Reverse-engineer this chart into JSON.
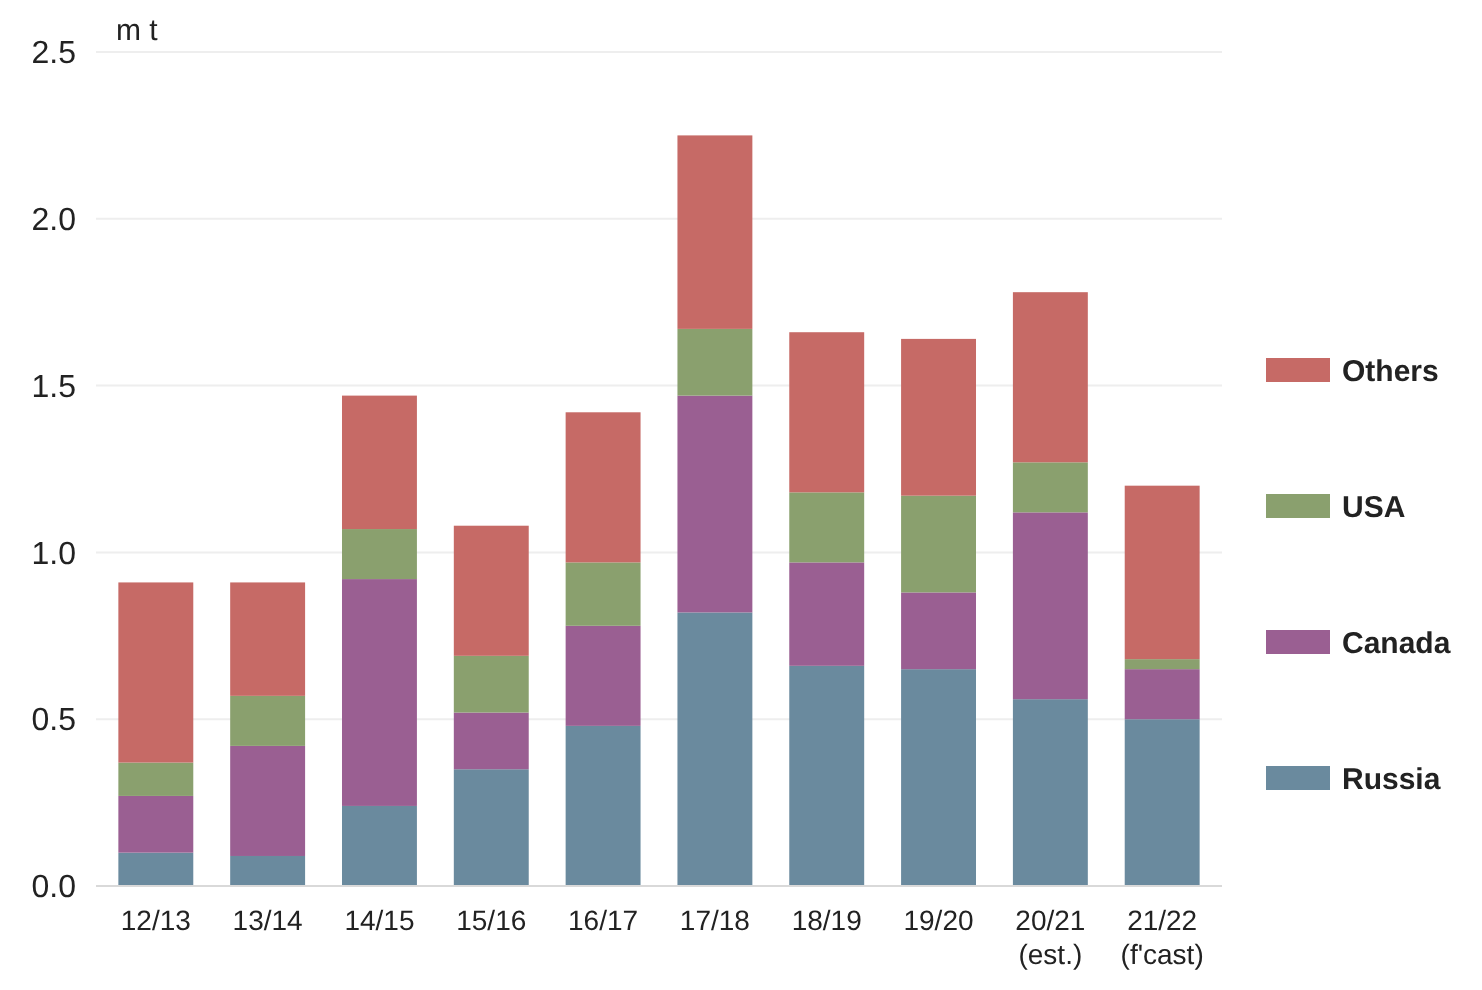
{
  "chart_data": {
    "type": "bar",
    "stacked": true,
    "ylabel": "m t",
    "categories": [
      "12/13",
      "13/14",
      "14/15",
      "15/16",
      "16/17",
      "17/18",
      "18/19",
      "19/20",
      "20/21\n(est.)",
      "21/22\n(f'cast)"
    ],
    "series": [
      {
        "name": "Russia",
        "color": "#6a8a9e",
        "values": [
          0.1,
          0.09,
          0.24,
          0.35,
          0.48,
          0.82,
          0.66,
          0.65,
          0.56,
          0.5
        ]
      },
      {
        "name": "Canada",
        "color": "#9a5f92",
        "values": [
          0.17,
          0.33,
          0.68,
          0.17,
          0.3,
          0.65,
          0.31,
          0.23,
          0.56,
          0.15
        ]
      },
      {
        "name": "USA",
        "color": "#8aa06e",
        "values": [
          0.1,
          0.15,
          0.15,
          0.17,
          0.19,
          0.2,
          0.21,
          0.29,
          0.15,
          0.03
        ]
      },
      {
        "name": "Others",
        "color": "#c66a66",
        "values": [
          0.54,
          0.34,
          0.4,
          0.39,
          0.45,
          0.58,
          0.48,
          0.47,
          0.51,
          0.52
        ]
      }
    ],
    "ylim": [
      0,
      2.5
    ],
    "yticks": [
      {
        "value": 0,
        "label": "0.0"
      },
      {
        "value": 0.5,
        "label": "0.5"
      },
      {
        "value": 1,
        "label": "1.0"
      },
      {
        "value": 1.5,
        "label": "1.5"
      },
      {
        "value": 2,
        "label": "2.0"
      },
      {
        "value": 2.5,
        "label": "2.5"
      }
    ],
    "grid": "y",
    "legend": "right"
  }
}
